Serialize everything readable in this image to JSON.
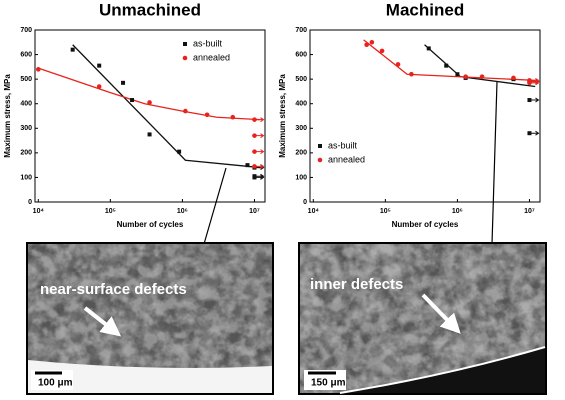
{
  "chart_data": [
    {
      "type": "scatter",
      "title": "Unmachined",
      "xlabel": "Number of cycles",
      "ylabel": "Maximum stress, MPa",
      "xscale": "log",
      "xlim": [
        9000,
        14000000
      ],
      "ylim": [
        0,
        700
      ],
      "xticks": [
        {
          "value": 10000,
          "label": "10⁴"
        },
        {
          "value": 100000,
          "label": "10⁵"
        },
        {
          "value": 1000000,
          "label": "10⁶"
        },
        {
          "value": 10000000,
          "label": "10⁷"
        }
      ],
      "yticks": [
        0,
        100,
        200,
        300,
        400,
        500,
        600,
        700
      ],
      "legend": "upper right",
      "series": [
        {
          "name": "as-built",
          "color": "#111111",
          "marker": "square",
          "x": [
            30000,
            70000,
            150000,
            200000,
            350000,
            900000,
            8000000,
            10000000,
            10000000,
            10000000
          ],
          "values": [
            620,
            555,
            485,
            415,
            275,
            205,
            150,
            140,
            105,
            100
          ]
        },
        {
          "name": "annealed",
          "color": "#e8231c",
          "marker": "circle",
          "x": [
            10000,
            70000,
            350000,
            1100000,
            2200000,
            5000000,
            10000000,
            10000000,
            10000000,
            10000000
          ],
          "values": [
            540,
            470,
            405,
            370,
            355,
            345,
            335,
            270,
            205,
            145
          ]
        }
      ],
      "fit_lines": [
        {
          "color": "#111111",
          "x": [
            30000,
            1100000,
            12000000
          ],
          "values": [
            640,
            170,
            140
          ]
        },
        {
          "color": "#e8231c",
          "x": [
            10000,
            100000,
            300000,
            1000000,
            3000000,
            12000000
          ],
          "values": [
            545,
            445,
            400,
            370,
            345,
            335
          ]
        }
      ],
      "annotations": [
        "near-surface defects",
        "100 μm"
      ]
    },
    {
      "type": "scatter",
      "title": "Machined",
      "xlabel": "Number of cycles",
      "ylabel": "Maximum stress, MPa",
      "xscale": "log",
      "xlim": [
        9000,
        14000000
      ],
      "ylim": [
        0,
        700
      ],
      "xticks": [
        {
          "value": 10000,
          "label": "10⁴"
        },
        {
          "value": 100000,
          "label": "10⁵"
        },
        {
          "value": 1000000,
          "label": "10⁶"
        },
        {
          "value": 10000000,
          "label": "10⁷"
        }
      ],
      "yticks": [
        0,
        100,
        200,
        300,
        400,
        500,
        600,
        700
      ],
      "legend": "center left",
      "series": [
        {
          "name": "as-built",
          "color": "#111111",
          "marker": "square",
          "x": [
            400000,
            700000,
            1000000,
            1300000,
            6000000,
            10000000,
            10000000,
            10000000
          ],
          "values": [
            625,
            555,
            520,
            505,
            500,
            490,
            415,
            280
          ]
        },
        {
          "name": "annealed",
          "color": "#e8231c",
          "marker": "circle",
          "x": [
            55000,
            65000,
            90000,
            150000,
            230000,
            1300000,
            2200000,
            6000000,
            10000000,
            10000000,
            10000000
          ],
          "values": [
            640,
            650,
            615,
            560,
            520,
            510,
            510,
            505,
            495,
            490,
            485
          ]
        }
      ],
      "fit_lines": [
        {
          "color": "#111111",
          "x": [
            350000,
            1100000,
            12000000
          ],
          "values": [
            640,
            510,
            470
          ]
        },
        {
          "color": "#e8231c",
          "x": [
            50000,
            200000,
            12000000
          ],
          "values": [
            660,
            520,
            495
          ]
        }
      ],
      "annotations": [
        "inner defects",
        "150 μm"
      ]
    }
  ]
}
